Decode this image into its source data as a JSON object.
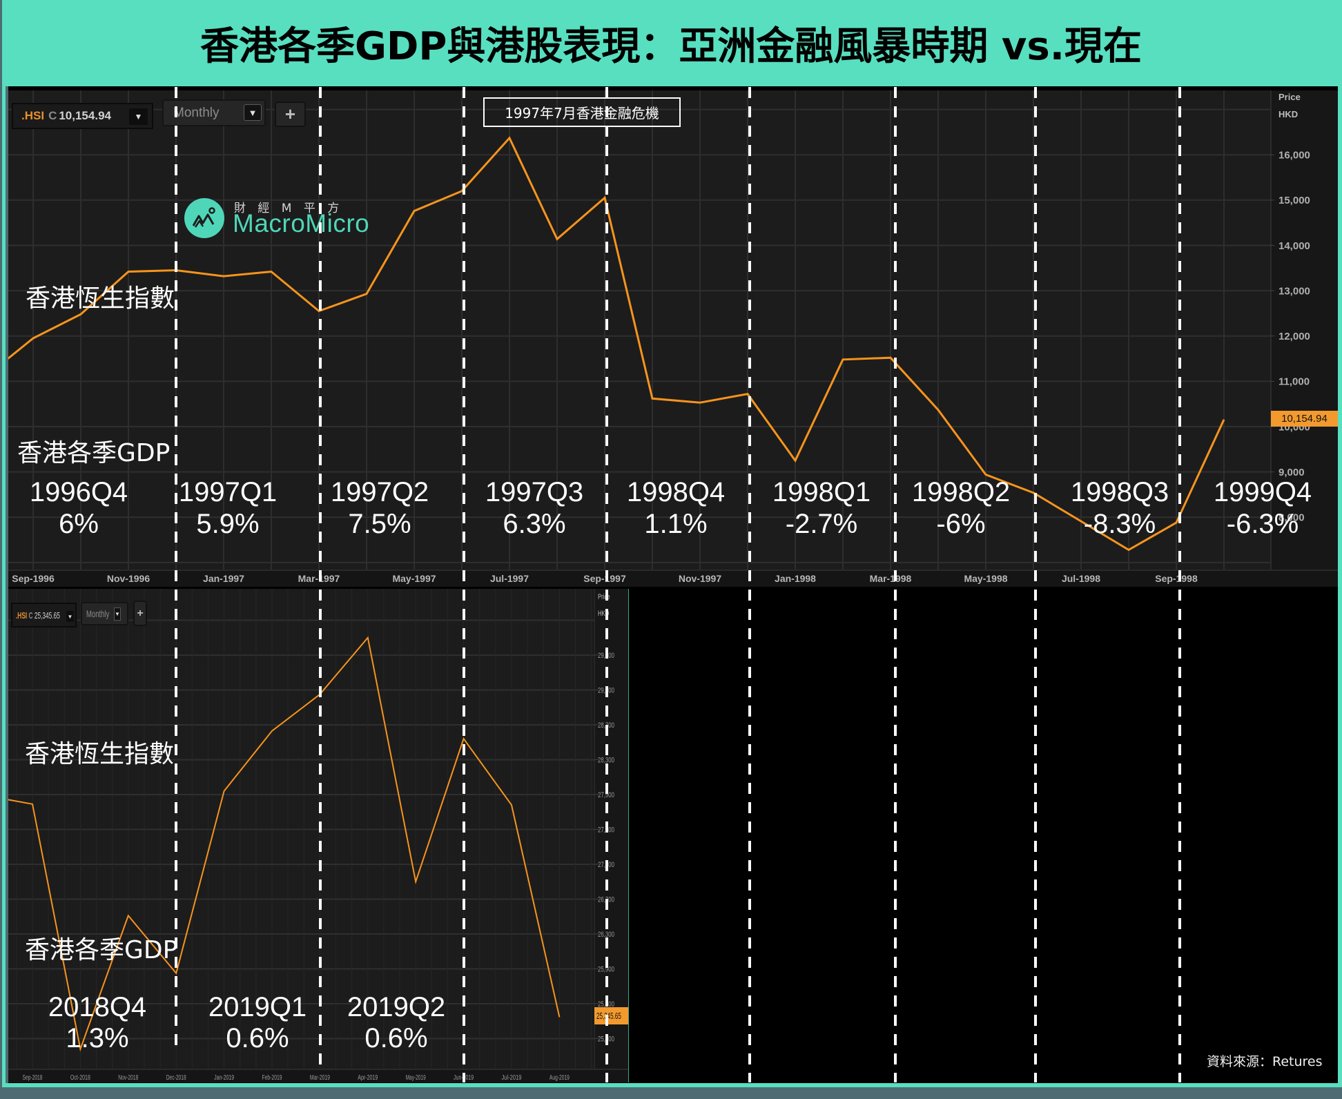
{
  "header": {
    "title": "香港各季GDP與港股表現：亞洲金融風暴時期 vs.現在"
  },
  "icons": {
    "chevron_down": "▼",
    "plus": "+"
  },
  "colors": {
    "header_bg": "#57dfc0",
    "line": "#f7941d",
    "price_tag": "#f39a2e",
    "ticker": "#e8912d",
    "logo": "#4fd6b8",
    "divider": "#ffffff"
  },
  "top_panel": {
    "symbol": ".HSI",
    "quote_prefix": "C",
    "quote_value": "10,154.94",
    "interval": "Monthly",
    "axis_title": "Price",
    "axis_unit": "HKD",
    "last_price": "10,154.94",
    "event_annotation": "1997年7月香港金融危機",
    "logo_cn": "財 經 M 平 方",
    "logo_en": "MacroMicro",
    "index_label": "香港恆生指數",
    "gdp_label": "香港各季GDP"
  },
  "bottom_panel": {
    "symbol": ".HSI",
    "quote_prefix": "C",
    "quote_value": "25,345.65",
    "interval": "Monthly",
    "axis_title": "Price",
    "axis_unit": "HKD",
    "last_price": "25,345.65",
    "index_label": "香港恆生指數",
    "gdp_label": "香港各季GDP"
  },
  "source": "資料來源：Retures",
  "chart_data": [
    {
      "type": "line",
      "title": "香港恆生指數",
      "xlabel": "",
      "ylabel": "Price HKD",
      "x": [
        "Aug-1996",
        "Sep-1996",
        "Oct-1996",
        "Nov-1996",
        "Dec-1996",
        "Jan-1997",
        "Feb-1997",
        "Mar-1997",
        "Apr-1997",
        "May-1997",
        "Jun-1997",
        "Jul-1997",
        "Aug-1997",
        "Sep-1997",
        "Oct-1997",
        "Nov-1997",
        "Dec-1997",
        "Jan-1998",
        "Feb-1998",
        "Mar-1998",
        "Apr-1998",
        "May-1998",
        "Jun-1998",
        "Jul-1998",
        "Aug-1998",
        "Sep-1998",
        "Oct-1998"
      ],
      "series": [
        {
          "name": ".HSI",
          "values": [
            11100,
            11950,
            12480,
            13420,
            13450,
            13320,
            13420,
            12550,
            12930,
            14760,
            15200,
            16370,
            14140,
            15050,
            10620,
            10530,
            10720,
            9250,
            11480,
            11520,
            10370,
            8940,
            8540,
            7910,
            7280,
            7880,
            10154.94
          ]
        }
      ],
      "x_ticks": [
        "Sep-1996",
        "Nov-1996",
        "Jan-1997",
        "Mar-1997",
        "May-1997",
        "Jul-1997",
        "Sep-1997",
        "Nov-1997",
        "Jan-1998",
        "Mar-1998",
        "May-1998",
        "Jul-1998",
        "Sep-1998"
      ],
      "y_ticks": [
        8000,
        9000,
        10000,
        11000,
        12000,
        13000,
        14000,
        15000,
        16000
      ],
      "y_tick_labels": [
        "8,000",
        "9,000",
        "10,000",
        "11,000",
        "12,000",
        "13,000",
        "14,000",
        "15,000",
        "16,000"
      ],
      "ylim": [
        6845,
        17420
      ],
      "grid": true,
      "legend": "none",
      "last_value_label": "10,154.94",
      "annotations": [
        "1997年7月香港金融危機"
      ],
      "quarter_dividers": [
        "Dec-1996",
        "Mar-1997",
        "Jun-1997",
        "Sep-1997",
        "Dec-1997",
        "Mar-1998",
        "Jun-1998",
        "Sep-1998"
      ],
      "gdp_annotations": [
        {
          "quarter": "1996Q4",
          "gdp": "6%"
        },
        {
          "quarter": "1997Q1",
          "gdp": "5.9%"
        },
        {
          "quarter": "1997Q2",
          "gdp": "7.5%"
        },
        {
          "quarter": "1997Q3",
          "gdp": "6.3%"
        },
        {
          "quarter": "1998Q4",
          "gdp": "1.1%"
        },
        {
          "quarter": "1998Q1",
          "gdp": "-2.7%"
        },
        {
          "quarter": "1998Q2",
          "gdp": "-6%"
        },
        {
          "quarter": "1998Q3",
          "gdp": "-8.3%"
        },
        {
          "quarter": "1999Q4",
          "gdp": "-6.3%"
        }
      ]
    },
    {
      "type": "line",
      "title": "香港恆生指數",
      "xlabel": "",
      "ylabel": "Price HKD",
      "x": [
        "Aug-2018",
        "Sep-2018",
        "Oct-2018",
        "Nov-2018",
        "Dec-2018",
        "Jan-2019",
        "Feb-2019",
        "Mar-2019",
        "Apr-2019",
        "May-2019",
        "Jun-2019",
        "Jul-2019",
        "Aug-2019"
      ],
      "series": [
        {
          "name": ".HSI",
          "values": [
            27890,
            27790,
            24980,
            26510,
            25850,
            27940,
            28630,
            29050,
            29700,
            26900,
            28540,
            27780,
            25345.65
          ]
        }
      ],
      "x_ticks": [
        "Sep-2018",
        "Oct-2018",
        "Nov-2018",
        "Dec-2018",
        "Jan-2019",
        "Feb-2019",
        "Mar-2019",
        "Apr-2019",
        "May-2019",
        "Jun-2019",
        "Jul-2019",
        "Aug-2019"
      ],
      "y_ticks": [
        25100,
        25500,
        25900,
        26300,
        26700,
        27100,
        27500,
        27900,
        28300,
        28700,
        29100,
        29500
      ],
      "y_tick_labels": [
        "25,100",
        "25,500",
        "25,900",
        "26,300",
        "26,700",
        "27,100",
        "27,500",
        "27,900",
        "28,300",
        "28,700",
        "29,100",
        "29,500"
      ],
      "ylim": [
        24755,
        30260
      ],
      "grid": true,
      "legend": "none",
      "last_value_label": "25,345.65",
      "quarter_dividers": [
        "Dec-2018",
        "Mar-2019",
        "Jun-2019"
      ],
      "gdp_annotations": [
        {
          "quarter": "2018Q4",
          "gdp": "1.3%"
        },
        {
          "quarter": "2019Q1",
          "gdp": "0.6%"
        },
        {
          "quarter": "2019Q2",
          "gdp": "0.6%"
        }
      ]
    }
  ]
}
